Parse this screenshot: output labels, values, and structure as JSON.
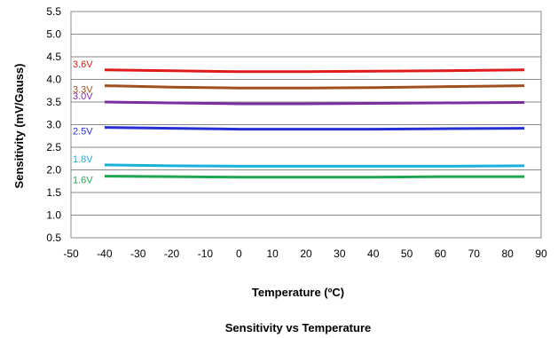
{
  "chart_data": {
    "type": "line",
    "title": "Sensitivity vs Temperature",
    "xlabel": "Temperature (ºC)",
    "ylabel": "Sensitivity (mV/Gauss)",
    "xlim": [
      -50,
      90
    ],
    "ylim": [
      0.5,
      5.5
    ],
    "xticks": [
      "-50",
      "-40",
      "-30",
      "-20",
      "-10",
      "0",
      "10",
      "20",
      "30",
      "40",
      "50",
      "60",
      "70",
      "80",
      "90"
    ],
    "yticks": [
      "0.5",
      "1.0",
      "1.5",
      "2.0",
      "2.5",
      "3.0",
      "3.5",
      "4.0",
      "4.5",
      "5.0",
      "5.5"
    ],
    "grid": "horizontal",
    "x": [
      -40,
      -20,
      0,
      20,
      40,
      60,
      85
    ],
    "series": [
      {
        "name": "3.6V",
        "color": "#e01b1b",
        "values": [
          4.21,
          4.19,
          4.17,
          4.17,
          4.18,
          4.19,
          4.21
        ]
      },
      {
        "name": "3.3V",
        "color": "#a0501e",
        "values": [
          3.86,
          3.83,
          3.81,
          3.81,
          3.82,
          3.84,
          3.86
        ]
      },
      {
        "name": "3.0V",
        "color": "#7b2e9e",
        "values": [
          3.5,
          3.48,
          3.46,
          3.46,
          3.47,
          3.48,
          3.49
        ]
      },
      {
        "name": "2.5V",
        "color": "#2430d6",
        "values": [
          2.94,
          2.92,
          2.9,
          2.9,
          2.9,
          2.91,
          2.92
        ]
      },
      {
        "name": "1.8V",
        "color": "#1ab0dc",
        "values": [
          2.11,
          2.09,
          2.08,
          2.08,
          2.08,
          2.08,
          2.09
        ]
      },
      {
        "name": "1.6V",
        "color": "#1fa650",
        "values": [
          1.86,
          1.85,
          1.84,
          1.84,
          1.84,
          1.85,
          1.85
        ]
      }
    ]
  }
}
